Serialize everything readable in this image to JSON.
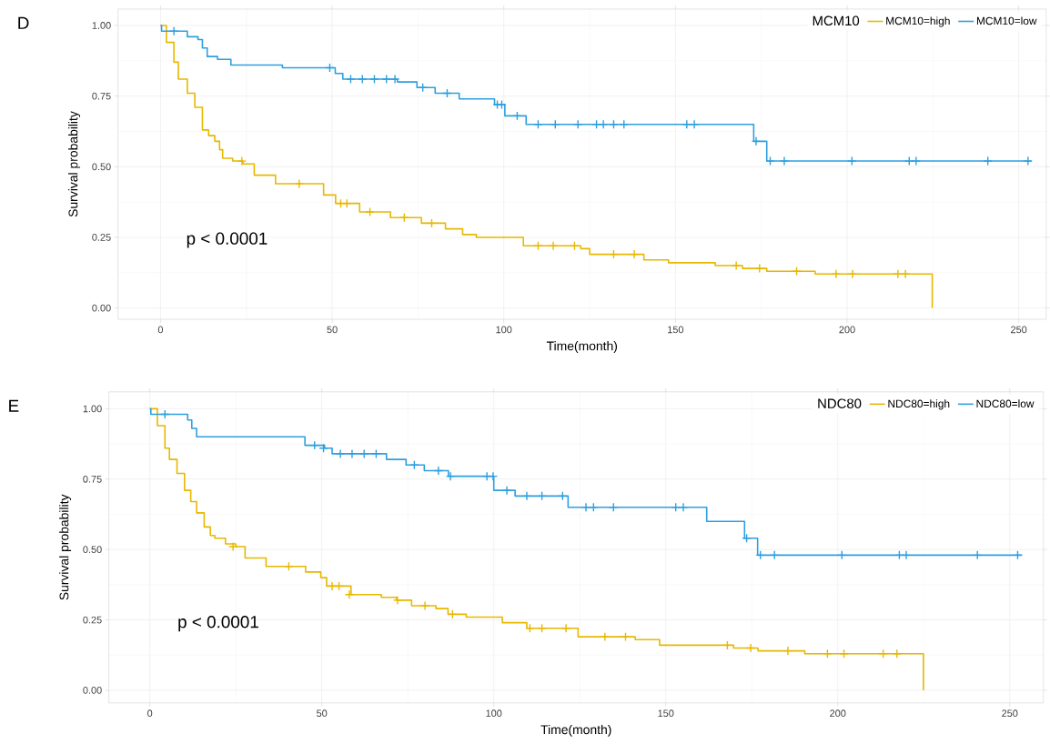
{
  "chart_data": [
    {
      "type": "step",
      "title": "D",
      "xlabel": "Time(month)",
      "ylabel": "Survival probability",
      "legend_title": "MCM10",
      "annotations": [
        "p < 0.0001"
      ],
      "xlim": [
        -12.4,
        258
      ],
      "ylim": [
        -0.04,
        1.058
      ],
      "xticks": [
        0,
        50,
        100,
        150,
        200,
        250
      ],
      "yticks": [
        {
          "value": 0,
          "label": "0.00"
        },
        {
          "value": 0.25,
          "label": "0.25"
        },
        {
          "value": 0.5,
          "label": "0.50"
        },
        {
          "value": 0.75,
          "label": "0.75"
        },
        {
          "value": 1,
          "label": "1.00"
        }
      ],
      "grid": true,
      "legend": "top right",
      "series": [
        {
          "name": "MCM10=high",
          "color": "#e7b800",
          "x": [
            0,
            1.7,
            3.9,
            5.2,
            7.8,
            10,
            12.2,
            14,
            15.8,
            17.2,
            18.1,
            21,
            24,
            27.3,
            33.5,
            47.5,
            51,
            58,
            67,
            76,
            83,
            88,
            92,
            105.7,
            122.4,
            125,
            140.8,
            148,
            161.6,
            169.5,
            176.6,
            190.7,
            224.8
          ],
          "values": [
            1.0,
            0.94,
            0.87,
            0.81,
            0.76,
            0.71,
            0.63,
            0.61,
            0.59,
            0.56,
            0.53,
            0.52,
            0.51,
            0.47,
            0.44,
            0.4,
            0.37,
            0.34,
            0.32,
            0.3,
            0.28,
            0.26,
            0.25,
            0.22,
            0.21,
            0.19,
            0.17,
            0.16,
            0.15,
            0.14,
            0.13,
            0.12,
            0.0
          ]
        },
        {
          "name": "MCM10=low",
          "color": "#2e9fdf",
          "x": [
            0,
            0.3,
            7.8,
            10.9,
            12.2,
            13.6,
            16.6,
            20.5,
            35.5,
            50.9,
            53.1,
            69,
            74.7,
            80,
            87,
            97.3,
            100.3,
            106.5,
            172.8,
            176.6,
            253.7
          ],
          "values": [
            1.0,
            0.98,
            0.96,
            0.95,
            0.92,
            0.89,
            0.88,
            0.86,
            0.85,
            0.83,
            0.81,
            0.8,
            0.78,
            0.76,
            0.74,
            0.72,
            0.68,
            0.65,
            0.59,
            0.52,
            0.52
          ]
        },
        {
          "type": "scatter",
          "marker": "cross",
          "color": "#e7b800",
          "x": [
            23.7,
            40.4,
            52.5,
            54.3,
            61,
            71,
            79,
            110,
            114.4,
            120.6,
            132,
            138,
            167.7,
            174.5,
            185.3,
            196.8,
            201.6,
            214.8,
            217
          ],
          "values": [
            0.52,
            0.44,
            0.37,
            0.37,
            0.34,
            0.32,
            0.3,
            0.22,
            0.22,
            0.22,
            0.19,
            0.19,
            0.15,
            0.14,
            0.13,
            0.12,
            0.12,
            0.12,
            0.12
          ]
        },
        {
          "type": "scatter",
          "marker": "cross",
          "color": "#2e9fdf",
          "x": [
            3.9,
            49.3,
            55.4,
            58.8,
            62.3,
            65.8,
            68.3,
            76.4,
            83.5,
            98.1,
            99.4,
            103.9,
            110,
            115,
            121.6,
            127,
            129,
            132,
            135,
            153.3,
            155.5,
            173.5,
            177.6,
            181.7,
            201.4,
            218.1,
            220.1,
            241,
            252.7
          ],
          "values": [
            0.98,
            0.85,
            0.81,
            0.81,
            0.81,
            0.81,
            0.81,
            0.78,
            0.76,
            0.72,
            0.72,
            0.68,
            0.65,
            0.65,
            0.65,
            0.65,
            0.65,
            0.65,
            0.65,
            0.65,
            0.65,
            0.59,
            0.52,
            0.52,
            0.52,
            0.52,
            0.52,
            0.52,
            0.52
          ]
        }
      ]
    },
    {
      "type": "step",
      "title": "E",
      "xlabel": "Time(month)",
      "ylabel": "Survival probability",
      "legend_title": "NDC80",
      "annotations": [
        "p < 0.0001"
      ],
      "xlim": [
        -11.9,
        259.8
      ],
      "ylim": [
        -0.045,
        1.06
      ],
      "xticks": [
        0,
        50,
        100,
        150,
        200,
        250
      ],
      "yticks": [
        {
          "value": 0,
          "label": "0.00"
        },
        {
          "value": 0.25,
          "label": "0.25"
        },
        {
          "value": 0.5,
          "label": "0.50"
        },
        {
          "value": 0.75,
          "label": "0.75"
        },
        {
          "value": 1,
          "label": "1.00"
        }
      ],
      "grid": true,
      "legend": "top right",
      "series": [
        {
          "name": "NDC80=high",
          "color": "#e7b800",
          "x": [
            0,
            2.2,
            4.4,
            5.7,
            7.9,
            10.1,
            11.9,
            13.6,
            15.8,
            17.6,
            18.9,
            22,
            25,
            27.7,
            33.8,
            45.3,
            49.7,
            51.4,
            58.5,
            67.3,
            71.7,
            76.1,
            83.2,
            86.7,
            92,
            102.5,
            109.6,
            124.5,
            141.1,
            148.2,
            169.7,
            176.8,
            190.4,
            224.9
          ],
          "values": [
            1.0,
            0.94,
            0.86,
            0.82,
            0.77,
            0.71,
            0.67,
            0.63,
            0.58,
            0.55,
            0.54,
            0.52,
            0.51,
            0.47,
            0.44,
            0.42,
            0.4,
            0.37,
            0.34,
            0.33,
            0.32,
            0.3,
            0.29,
            0.27,
            0.26,
            0.24,
            0.22,
            0.19,
            0.18,
            0.16,
            0.15,
            0.14,
            0.13,
            0.0
          ]
        },
        {
          "name": "NDC80=low",
          "color": "#2e9fdf",
          "x": [
            0,
            0.3,
            11,
            12.2,
            13.6,
            45.1,
            50.8,
            53,
            68.8,
            74.5,
            79.8,
            86.8,
            100,
            106.2,
            121.6,
            161.9,
            172.9,
            176.7,
            253.6
          ],
          "values": [
            1.0,
            0.98,
            0.96,
            0.93,
            0.9,
            0.87,
            0.86,
            0.84,
            0.82,
            0.8,
            0.78,
            0.76,
            0.71,
            0.69,
            0.65,
            0.6,
            0.54,
            0.48,
            0.48
          ]
        },
        {
          "type": "scatter",
          "marker": "cross",
          "color": "#e7b800",
          "x": [
            24.2,
            40.4,
            53,
            55,
            58,
            72,
            80,
            88,
            110.5,
            114,
            121,
            132.3,
            138.3,
            167.9,
            174.7,
            185.5,
            197,
            201.8,
            213.2,
            217.2
          ],
          "values": [
            0.51,
            0.44,
            0.37,
            0.37,
            0.34,
            0.32,
            0.3,
            0.27,
            0.22,
            0.22,
            0.22,
            0.19,
            0.19,
            0.16,
            0.15,
            0.14,
            0.13,
            0.13,
            0.13,
            0.13
          ]
        },
        {
          "type": "scatter",
          "marker": "cross",
          "color": "#2e9fdf",
          "x": [
            4.4,
            47.9,
            50.5,
            55.4,
            58.8,
            62.3,
            65.8,
            76.9,
            83.9,
            87.4,
            98,
            99.8,
            103.8,
            109.6,
            114,
            120,
            126.8,
            129,
            134.8,
            152.9,
            155.1,
            173.5,
            177.5,
            181.6,
            201.2,
            217.9,
            219.9,
            240.6,
            252.3
          ],
          "values": [
            0.98,
            0.87,
            0.86,
            0.84,
            0.84,
            0.84,
            0.84,
            0.8,
            0.78,
            0.76,
            0.76,
            0.76,
            0.71,
            0.69,
            0.69,
            0.69,
            0.65,
            0.65,
            0.65,
            0.65,
            0.65,
            0.54,
            0.48,
            0.48,
            0.48,
            0.48,
            0.48,
            0.48,
            0.48
          ]
        }
      ]
    }
  ]
}
